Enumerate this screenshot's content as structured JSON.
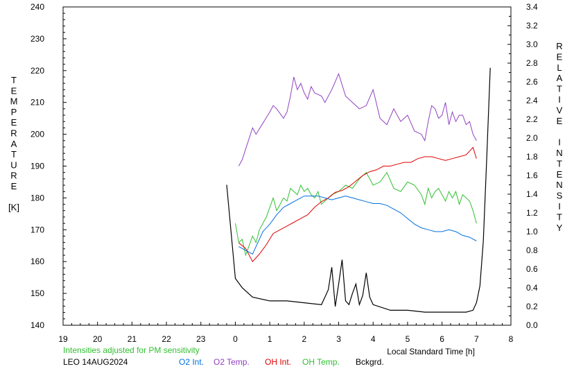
{
  "chart_data": {
    "type": "line",
    "station": "LEO 14AUG2024",
    "note": "Intensities adjusted for PM sensitivity",
    "xlabel": "Local Standard Time [h]",
    "ylabel_left_letters": [
      "T",
      "E",
      "M",
      "P",
      "E",
      "R",
      "A",
      "T",
      "U",
      "R",
      "E",
      "",
      "[K]"
    ],
    "ylabel_right_letters": [
      "R",
      "E",
      "L",
      "A",
      "T",
      "I",
      "V",
      "E",
      "",
      "I",
      "N",
      "T",
      "E",
      "N",
      "S",
      "I",
      "T",
      "Y"
    ],
    "x_tick_labels": [
      "19",
      "20",
      "21",
      "22",
      "23",
      "0",
      "1",
      "2",
      "3",
      "4",
      "5",
      "6",
      "7",
      "8"
    ],
    "x_range": [
      19,
      32
    ],
    "ylim_left": [
      140,
      240
    ],
    "ylim_right": [
      0.0,
      3.4
    ],
    "y_left_ticks": [
      "140",
      "150",
      "160",
      "170",
      "180",
      "190",
      "200",
      "210",
      "220",
      "230",
      "240"
    ],
    "y_right_ticks": [
      "0.0",
      "0.2",
      "0.4",
      "0.6",
      "0.8",
      "1.0",
      "1.2",
      "1.4",
      "1.6",
      "1.8",
      "2.0",
      "2.2",
      "2.4",
      "2.6",
      "2.8",
      "3.0",
      "3.2",
      "3.4"
    ],
    "colors": {
      "o2_int": "#0070e0",
      "o2_temp": "#9040c0",
      "oh_int": "#e00000",
      "oh_temp": "#30c030",
      "bckgrd": "#000000",
      "note": "#30c030"
    },
    "legend": [
      {
        "label": "O2 Int.",
        "color": "#0070e0"
      },
      {
        "label": "O2 Temp.",
        "color": "#9040c0"
      },
      {
        "label": "OH Int.",
        "color": "#e00000"
      },
      {
        "label": "OH Temp.",
        "color": "#30c030"
      },
      {
        "label": "Bckgrd.",
        "color": "#000000"
      }
    ],
    "series": [
      {
        "name": "O2 Temp.",
        "axis": "left",
        "color": "#9040c0",
        "x": [
          24.1,
          24.2,
          24.5,
          24.6,
          25.0,
          25.1,
          25.2,
          25.4,
          25.5,
          25.6,
          25.7,
          25.8,
          25.9,
          26.0,
          26.1,
          26.2,
          26.3,
          26.5,
          26.6,
          26.8,
          27.0,
          27.2,
          27.4,
          27.6,
          27.8,
          28.0,
          28.2,
          28.4,
          28.6,
          28.8,
          29.0,
          29.2,
          29.4,
          29.5,
          29.6,
          29.7,
          29.8,
          29.9,
          30.0,
          30.1,
          30.2,
          30.3,
          30.4,
          30.5,
          30.6,
          30.7,
          30.8,
          30.9,
          31.0
        ],
        "y": [
          190,
          192,
          202,
          200,
          207,
          209,
          208,
          205,
          207,
          212,
          218,
          214,
          216,
          213,
          211,
          215,
          213,
          212,
          210,
          214,
          219,
          212,
          210,
          208,
          209,
          214,
          205,
          203,
          208,
          204,
          206,
          201,
          200,
          198,
          204,
          209,
          208,
          205,
          206,
          210,
          203,
          207,
          204,
          206,
          206,
          203,
          204,
          200,
          198
        ]
      },
      {
        "name": "OH Temp.",
        "axis": "left",
        "color": "#30c030",
        "x": [
          24.0,
          24.1,
          24.2,
          24.3,
          24.4,
          24.5,
          24.6,
          24.7,
          24.8,
          24.9,
          25.0,
          25.1,
          25.2,
          25.3,
          25.4,
          25.5,
          25.6,
          25.7,
          25.8,
          25.9,
          26.0,
          26.1,
          26.2,
          26.3,
          26.4,
          26.5,
          26.6,
          26.8,
          27.0,
          27.2,
          27.4,
          27.6,
          27.8,
          28.0,
          28.2,
          28.4,
          28.6,
          28.8,
          29.0,
          29.2,
          29.4,
          29.5,
          29.6,
          29.7,
          29.8,
          29.9,
          30.0,
          30.1,
          30.2,
          30.3,
          30.4,
          30.5,
          30.6,
          30.7,
          30.8,
          30.9,
          31.0
        ],
        "y": [
          172,
          166,
          167,
          162,
          165,
          168,
          166,
          170,
          172,
          174,
          177,
          180,
          176,
          178,
          180,
          179,
          183,
          182,
          181,
          184,
          182,
          183,
          181,
          180,
          182,
          178,
          179,
          181,
          182,
          184,
          183,
          186,
          188,
          184,
          185,
          188,
          183,
          182,
          185,
          184,
          181,
          178,
          183,
          180,
          182,
          183,
          181,
          179,
          182,
          180,
          182,
          178,
          181,
          180,
          179,
          176,
          172
        ]
      },
      {
        "name": "OH Int.",
        "axis": "right",
        "color": "#e00000",
        "x": [
          24.1,
          24.3,
          24.5,
          24.7,
          24.9,
          25.1,
          25.3,
          25.5,
          25.7,
          25.9,
          26.1,
          26.3,
          26.5,
          26.7,
          26.9,
          27.1,
          27.3,
          27.5,
          27.7,
          27.9,
          28.1,
          28.3,
          28.5,
          28.7,
          28.9,
          29.1,
          29.3,
          29.5,
          29.7,
          29.9,
          30.1,
          30.3,
          30.5,
          30.7,
          30.9,
          31.0
        ],
        "y": [
          0.88,
          0.82,
          0.68,
          0.76,
          0.86,
          0.98,
          1.02,
          1.06,
          1.1,
          1.14,
          1.18,
          1.26,
          1.32,
          1.36,
          1.42,
          1.44,
          1.48,
          1.54,
          1.6,
          1.64,
          1.66,
          1.7,
          1.7,
          1.72,
          1.74,
          1.74,
          1.78,
          1.8,
          1.8,
          1.78,
          1.76,
          1.78,
          1.8,
          1.82,
          1.9,
          1.78
        ]
      },
      {
        "name": "O2 Int.",
        "axis": "right",
        "color": "#0070e0",
        "x": [
          24.1,
          24.3,
          24.5,
          24.8,
          25.0,
          25.2,
          25.4,
          25.6,
          25.8,
          26.0,
          26.2,
          26.4,
          26.6,
          26.8,
          27.0,
          27.2,
          27.4,
          27.6,
          27.8,
          28.0,
          28.2,
          28.4,
          28.6,
          28.8,
          29.0,
          29.2,
          29.4,
          29.6,
          29.8,
          30.0,
          30.2,
          30.4,
          30.6,
          30.8,
          31.0
        ],
        "y": [
          0.84,
          0.8,
          0.76,
          1.0,
          1.08,
          1.18,
          1.26,
          1.3,
          1.34,
          1.38,
          1.38,
          1.38,
          1.36,
          1.34,
          1.36,
          1.38,
          1.36,
          1.34,
          1.32,
          1.3,
          1.3,
          1.28,
          1.24,
          1.2,
          1.14,
          1.08,
          1.04,
          1.02,
          1.0,
          1.0,
          1.02,
          1.0,
          0.96,
          0.94,
          0.9
        ]
      },
      {
        "name": "Bckgrd.",
        "axis": "right",
        "color": "#000000",
        "x": [
          23.75,
          23.9,
          24.0,
          24.2,
          24.5,
          25.0,
          25.5,
          26.0,
          26.5,
          26.6,
          26.7,
          26.8,
          26.9,
          27.0,
          27.1,
          27.2,
          27.3,
          27.4,
          27.5,
          27.6,
          27.7,
          27.8,
          27.9,
          28.0,
          28.5,
          29.0,
          29.5,
          30.0,
          30.5,
          30.7,
          30.9,
          31.0,
          31.1,
          31.2,
          31.3,
          31.4
        ],
        "y": [
          1.5,
          0.9,
          0.5,
          0.4,
          0.3,
          0.26,
          0.26,
          0.24,
          0.22,
          0.3,
          0.38,
          0.62,
          0.2,
          0.44,
          0.7,
          0.26,
          0.22,
          0.34,
          0.44,
          0.22,
          0.32,
          0.56,
          0.3,
          0.22,
          0.16,
          0.16,
          0.14,
          0.14,
          0.14,
          0.14,
          0.16,
          0.24,
          0.42,
          0.9,
          1.8,
          2.75
        ]
      }
    ]
  },
  "xlabel_curve_start_note": ""
}
